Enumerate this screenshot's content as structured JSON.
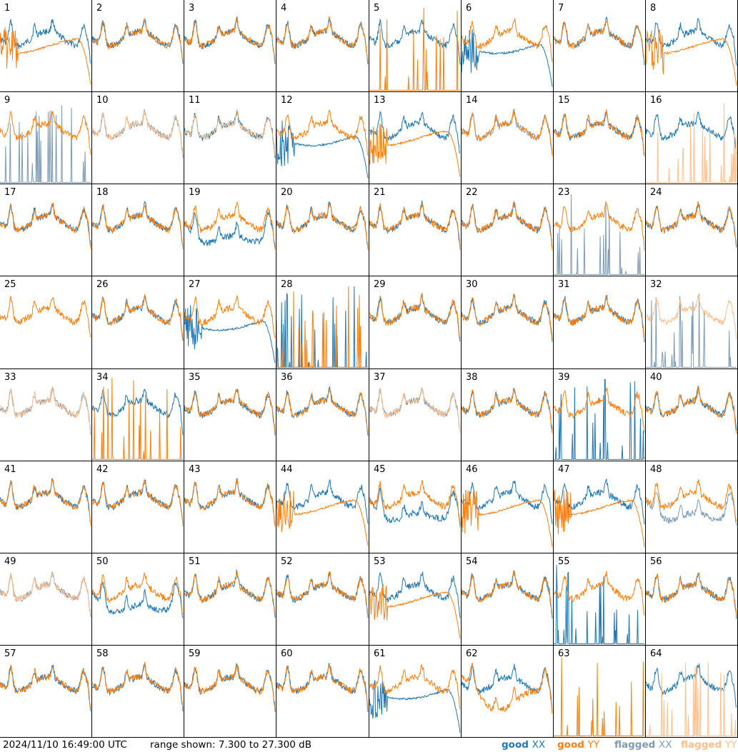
{
  "footer": {
    "timestamp": "2024/11/10 16:49:00 UTC",
    "range_text": "range shown: 7.300 to 27.300 dB",
    "legend": [
      {
        "prefix": "good",
        "label": "XX",
        "color": "#1f77b4"
      },
      {
        "prefix": "good",
        "label": "YY",
        "color": "#ff7f0e"
      },
      {
        "prefix": "flagged",
        "label": "XX",
        "color": "#7f9bb3"
      },
      {
        "prefix": "flagged",
        "label": "YY",
        "color": "#ffbf8c"
      }
    ]
  },
  "chart_data": {
    "type": "line",
    "ylim": [
      7.3,
      27.3
    ],
    "yunit": "dB",
    "grid": {
      "rows": 8,
      "cols": 8
    },
    "colors": {
      "good_xx": "#1f77b4",
      "good_yy": "#ff7f0e",
      "flagged_xx": "#7f9bb3",
      "flagged_yy": "#ffbf8c"
    },
    "panels": [
      {
        "id": "1",
        "xx": "good",
        "yy": "good",
        "xx_shape": "normal",
        "yy_shape": "rolloff"
      },
      {
        "id": "2",
        "xx": "good",
        "yy": "good",
        "xx_shape": "normal",
        "yy_shape": "normal"
      },
      {
        "id": "3",
        "xx": "good",
        "yy": "good",
        "xx_shape": "normal",
        "yy_shape": "normal"
      },
      {
        "id": "4",
        "xx": "good",
        "yy": "good",
        "xx_shape": "normal",
        "yy_shape": "normal"
      },
      {
        "id": "5",
        "xx": "good",
        "yy": "good",
        "xx_shape": "normal",
        "yy_shape": "dead"
      },
      {
        "id": "6",
        "xx": "good",
        "yy": "good",
        "xx_shape": "rolloff",
        "yy_shape": "normal"
      },
      {
        "id": "7",
        "xx": "good",
        "yy": "good",
        "xx_shape": "normal",
        "yy_shape": "normal"
      },
      {
        "id": "8",
        "xx": "good",
        "yy": "good",
        "xx_shape": "normal",
        "yy_shape": "rolloff"
      },
      {
        "id": "9",
        "xx": "flagged",
        "yy": "good",
        "xx_shape": "dead",
        "yy_shape": "normal"
      },
      {
        "id": "10",
        "xx": "flagged",
        "yy": "flagged",
        "xx_shape": "normal",
        "yy_shape": "normal"
      },
      {
        "id": "11",
        "xx": "good",
        "yy": "flagged",
        "xx_shape": "normal",
        "yy_shape": "normal"
      },
      {
        "id": "12",
        "xx": "good",
        "yy": "good",
        "xx_shape": "rolloff",
        "yy_shape": "normal"
      },
      {
        "id": "13",
        "xx": "good",
        "yy": "good",
        "xx_shape": "normal",
        "yy_shape": "rolloff"
      },
      {
        "id": "14",
        "xx": "flagged",
        "yy": "good",
        "xx_shape": "normal",
        "yy_shape": "normal"
      },
      {
        "id": "15",
        "xx": "good",
        "yy": "good",
        "xx_shape": "normal",
        "yy_shape": "normal"
      },
      {
        "id": "16",
        "xx": "good",
        "yy": "flagged",
        "xx_shape": "normal",
        "yy_shape": "dead"
      },
      {
        "id": "17",
        "xx": "good",
        "yy": "good",
        "xx_shape": "normal",
        "yy_shape": "normal"
      },
      {
        "id": "18",
        "xx": "good",
        "yy": "good",
        "xx_shape": "normal",
        "yy_shape": "normal"
      },
      {
        "id": "19",
        "xx": "good",
        "yy": "good",
        "xx_shape": "low",
        "yy_shape": "normal"
      },
      {
        "id": "20",
        "xx": "good",
        "yy": "good",
        "xx_shape": "normal",
        "yy_shape": "normal"
      },
      {
        "id": "21",
        "xx": "good",
        "yy": "good",
        "xx_shape": "normal",
        "yy_shape": "normal"
      },
      {
        "id": "22",
        "xx": "good",
        "yy": "good",
        "xx_shape": "normal",
        "yy_shape": "normal"
      },
      {
        "id": "23",
        "xx": "flagged",
        "yy": "good",
        "xx_shape": "dead",
        "yy_shape": "normal"
      },
      {
        "id": "24",
        "xx": "good",
        "yy": "good",
        "xx_shape": "normal",
        "yy_shape": "normal"
      },
      {
        "id": "25",
        "xx": "good",
        "yy": "good",
        "xx_shape": "hidden",
        "yy_shape": "normal"
      },
      {
        "id": "26",
        "xx": "good",
        "yy": "good",
        "xx_shape": "normal",
        "yy_shape": "normal"
      },
      {
        "id": "27",
        "xx": "good",
        "yy": "good",
        "xx_shape": "rolloff",
        "yy_shape": "normal"
      },
      {
        "id": "28",
        "xx": "good",
        "yy": "good",
        "xx_shape": "dead",
        "yy_shape": "dead"
      },
      {
        "id": "29",
        "xx": "good",
        "yy": "good",
        "xx_shape": "normal",
        "yy_shape": "normal"
      },
      {
        "id": "30",
        "xx": "good",
        "yy": "good",
        "xx_shape": "normal",
        "yy_shape": "normal"
      },
      {
        "id": "31",
        "xx": "good",
        "yy": "good",
        "xx_shape": "normal",
        "yy_shape": "normal"
      },
      {
        "id": "32",
        "xx": "flagged",
        "yy": "flagged",
        "xx_shape": "dead",
        "yy_shape": "normal"
      },
      {
        "id": "33",
        "xx": "flagged",
        "yy": "flagged",
        "xx_shape": "normal",
        "yy_shape": "normal"
      },
      {
        "id": "34",
        "xx": "good",
        "yy": "good",
        "xx_shape": "normal",
        "yy_shape": "dead"
      },
      {
        "id": "35",
        "xx": "good",
        "yy": "good",
        "xx_shape": "normal",
        "yy_shape": "normal"
      },
      {
        "id": "36",
        "xx": "good",
        "yy": "good",
        "xx_shape": "normal",
        "yy_shape": "normal"
      },
      {
        "id": "37",
        "xx": "flagged",
        "yy": "flagged",
        "xx_shape": "normal",
        "yy_shape": "normal"
      },
      {
        "id": "38",
        "xx": "good",
        "yy": "good",
        "xx_shape": "normal",
        "yy_shape": "normal"
      },
      {
        "id": "39",
        "xx": "good",
        "yy": "good",
        "xx_shape": "dead",
        "yy_shape": "normal"
      },
      {
        "id": "40",
        "xx": "good",
        "yy": "good",
        "xx_shape": "normal",
        "yy_shape": "normal"
      },
      {
        "id": "41",
        "xx": "good",
        "yy": "good",
        "xx_shape": "normal",
        "yy_shape": "normal"
      },
      {
        "id": "42",
        "xx": "good",
        "yy": "good",
        "xx_shape": "normal",
        "yy_shape": "normal"
      },
      {
        "id": "43",
        "xx": "good",
        "yy": "good",
        "xx_shape": "normal",
        "yy_shape": "normal"
      },
      {
        "id": "44",
        "xx": "good",
        "yy": "good",
        "xx_shape": "normal",
        "yy_shape": "rolloff"
      },
      {
        "id": "45",
        "xx": "good",
        "yy": "good",
        "xx_shape": "low",
        "yy_shape": "normal"
      },
      {
        "id": "46",
        "xx": "good",
        "yy": "good",
        "xx_shape": "normal",
        "yy_shape": "rolloff"
      },
      {
        "id": "47",
        "xx": "good",
        "yy": "good",
        "xx_shape": "normal",
        "yy_shape": "rolloff"
      },
      {
        "id": "48",
        "xx": "flagged",
        "yy": "good",
        "xx_shape": "low",
        "yy_shape": "normal"
      },
      {
        "id": "49",
        "xx": "flagged",
        "yy": "flagged",
        "xx_shape": "normal",
        "yy_shape": "normal"
      },
      {
        "id": "50",
        "xx": "good",
        "yy": "good",
        "xx_shape": "low",
        "yy_shape": "normal"
      },
      {
        "id": "51",
        "xx": "good",
        "yy": "good",
        "xx_shape": "normal",
        "yy_shape": "normal"
      },
      {
        "id": "52",
        "xx": "good",
        "yy": "good",
        "xx_shape": "normal",
        "yy_shape": "normal"
      },
      {
        "id": "53",
        "xx": "good",
        "yy": "good",
        "xx_shape": "normal",
        "yy_shape": "rolloff"
      },
      {
        "id": "54",
        "xx": "good",
        "yy": "good",
        "xx_shape": "normal",
        "yy_shape": "normal"
      },
      {
        "id": "55",
        "xx": "good",
        "yy": "good",
        "xx_shape": "dead",
        "yy_shape": "normal"
      },
      {
        "id": "56",
        "xx": "good",
        "yy": "good",
        "xx_shape": "normal",
        "yy_shape": "normal"
      },
      {
        "id": "57",
        "xx": "good",
        "yy": "good",
        "xx_shape": "normal",
        "yy_shape": "normal"
      },
      {
        "id": "58",
        "xx": "good",
        "yy": "good",
        "xx_shape": "normal",
        "yy_shape": "normal"
      },
      {
        "id": "59",
        "xx": "good",
        "yy": "good",
        "xx_shape": "normal",
        "yy_shape": "normal"
      },
      {
        "id": "60",
        "xx": "good",
        "yy": "good",
        "xx_shape": "normal",
        "yy_shape": "normal"
      },
      {
        "id": "61",
        "xx": "good",
        "yy": "good",
        "xx_shape": "rolloff",
        "yy_shape": "normal"
      },
      {
        "id": "62",
        "xx": "good",
        "yy": "good",
        "xx_shape": "normal",
        "yy_shape": "low"
      },
      {
        "id": "63",
        "xx": "good",
        "yy": "good",
        "xx_shape": "hidden",
        "yy_shape": "dead"
      },
      {
        "id": "64",
        "xx": "good",
        "yy": "flagged",
        "xx_shape": "normal",
        "yy_shape": "dead"
      }
    ]
  }
}
